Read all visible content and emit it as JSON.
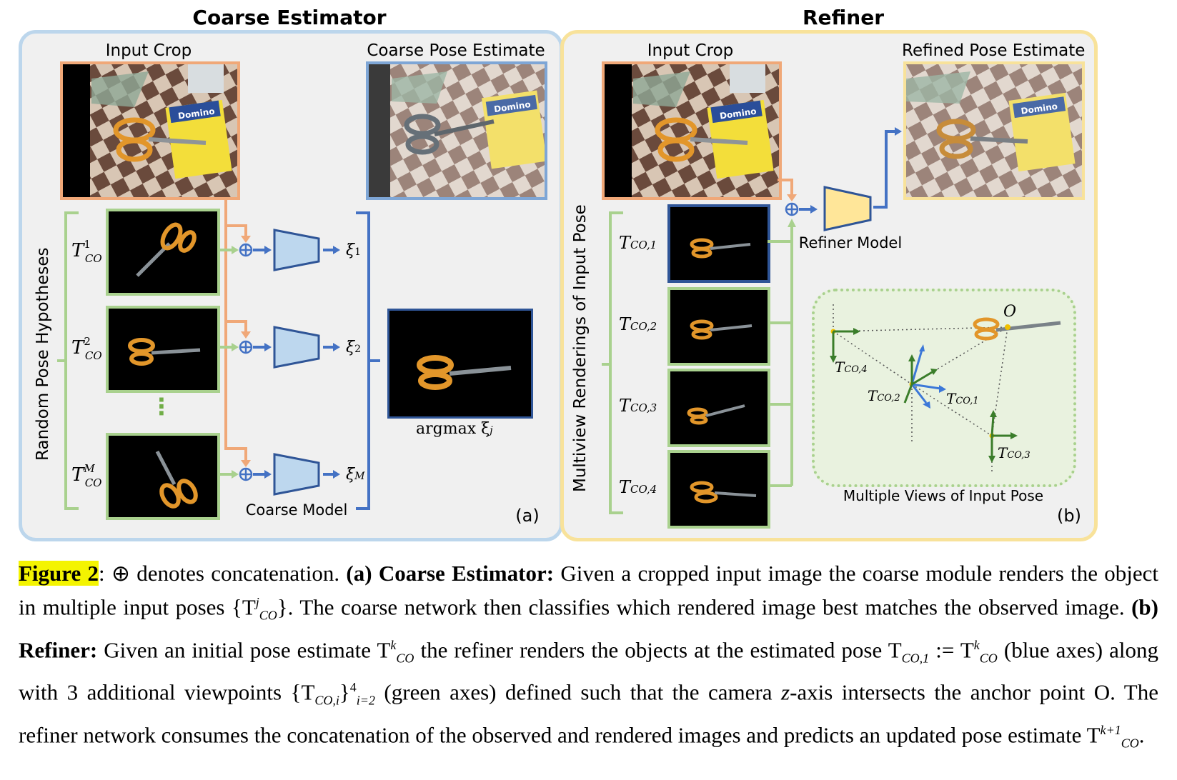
{
  "panels": {
    "coarse": {
      "title": "Coarse Estimator",
      "input_crop": "Input Crop",
      "output": "Coarse Pose Estimate",
      "side_label": "Random Pose Hypotheses",
      "hyp1": "T",
      "hyp1_sup": "1",
      "hyp2_sup": "2",
      "hypM_sup": "M",
      "hyp_sub": "CO",
      "xi1": "ξ",
      "xi1_sub": "1",
      "xi2_sub": "2",
      "xiM_sub": "M",
      "dots": "⋮",
      "model_label": "Coarse Model",
      "argmax": "argmax ξ",
      "argmax_sub": "j",
      "tag": "(a)"
    },
    "refiner": {
      "title": "Refiner",
      "input_crop": "Input Crop",
      "output": "Refined Pose Estimate",
      "side_label": "Multiview Renderings of Input Pose",
      "model_label": "Refiner Model",
      "views": [
        "CO,1",
        "CO,2",
        "CO,3",
        "CO,4"
      ],
      "multiview_label": "Multiple Views of Input Pose",
      "anchor": "O",
      "tag": "(b)"
    }
  },
  "caption": {
    "fig": "Figure 2",
    "t1": ": ⊕ denotes concatenation. ",
    "a_lbl": "(a) Coarse Estimator:",
    "t2": " Given a cropped input image the coarse module renders the object in multiple input poses {T",
    "t2b": "CO",
    "t2c": "}. The coarse network then classifies which rendered image best matches the observed image. ",
    "b_lbl": "(b) Refiner:",
    "t3": " Given an initial pose estimate T",
    "t3b": "CO",
    "t3c": " the refiner renders the objects at the estimated pose T",
    "t3d": "CO,1",
    "t3e": " := T",
    "t3f": "CO",
    "t3g": " (blue axes) along with 3 additional viewpoints {T",
    "t3h": "CO,i",
    "t3i": "}",
    "t3j": "4",
    "t3k": "i=2",
    "t3l": " (green axes) defined such that the camera ",
    "t3m": "z",
    "t3n": "-axis intersects the anchor point O. The refiner network consumes the concatenation of the observed and rendered images and predicts an updated pose estimate T",
    "t3o": "k+1",
    "t3p": "CO",
    "t3q": ".",
    "sup_j": "j",
    "sup_k": "k"
  },
  "colors": {
    "coarse_border": "#bcd6ec",
    "refiner_border": "#f8e29a",
    "orange": "#f0a878",
    "green": "#a9d18e",
    "blue": "#4472c4",
    "model_fill": "#bdd7ee",
    "refiner_fill": "#ffe699",
    "axes_green": "#3a7d2a",
    "axes_blue": "#3c78d8",
    "anchor": "#f0c000"
  }
}
